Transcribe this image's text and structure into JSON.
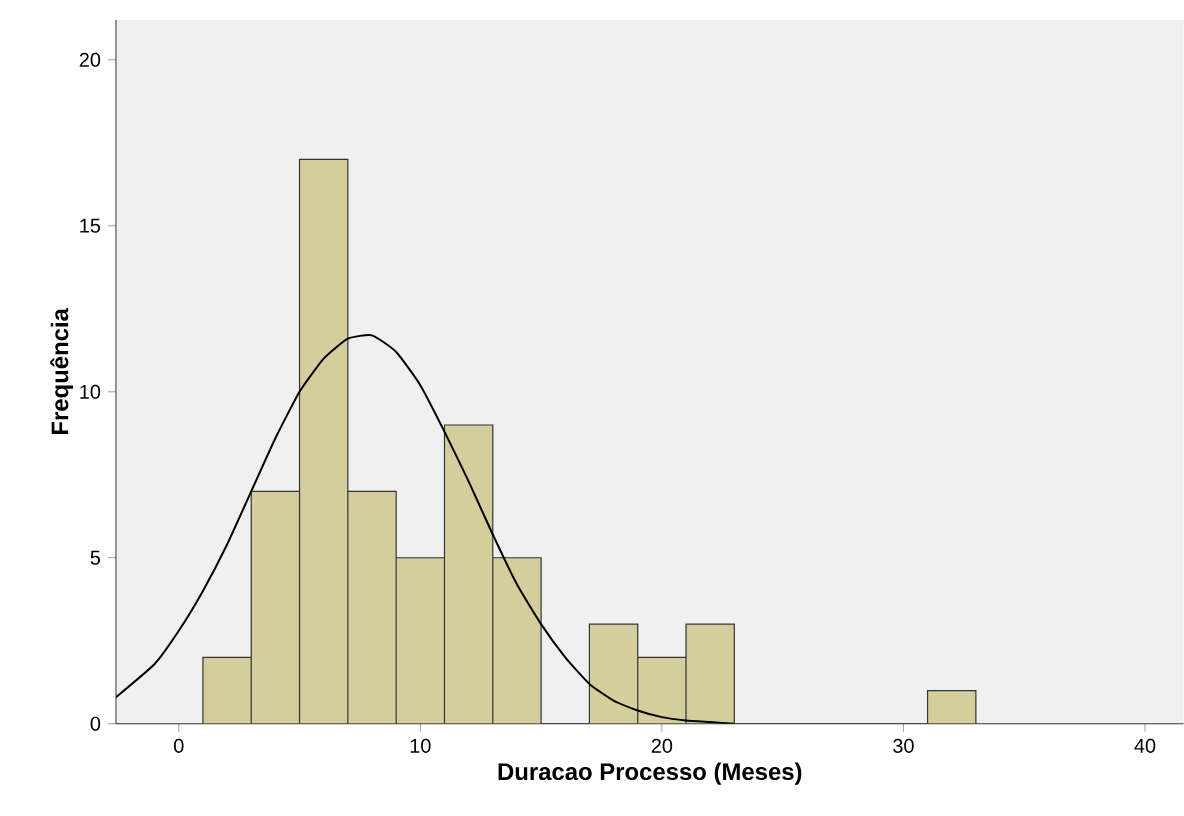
{
  "chart_data": {
    "type": "histogram",
    "xlabel": "Duracao Processo (Meses)",
    "ylabel": "Frequência",
    "bins": [
      1,
      3,
      5,
      7,
      9,
      11,
      13,
      15,
      17,
      19,
      21,
      23,
      25,
      27,
      29,
      31,
      33
    ],
    "values": [
      2,
      7,
      17,
      7,
      5,
      9,
      5,
      0,
      3,
      2,
      3,
      0,
      0,
      0,
      0,
      1
    ],
    "color": "#d3ce9b",
    "series": [
      {
        "type": "line",
        "color": "#000000",
        "x": [
          -2.6,
          -1,
          0,
          1,
          2,
          3,
          4,
          5,
          6,
          7,
          8,
          9,
          10,
          11,
          12,
          13,
          14,
          15,
          16,
          17,
          18,
          19,
          20,
          21,
          22,
          23
        ],
        "values": [
          0.8,
          1.8,
          2.8,
          4.0,
          5.4,
          7.0,
          8.6,
          10.0,
          11.0,
          11.6,
          11.7,
          11.2,
          10.2,
          8.8,
          7.3,
          5.7,
          4.2,
          3.0,
          2.0,
          1.2,
          0.7,
          0.4,
          0.2,
          0.1,
          0.05,
          0
        ]
      }
    ],
    "xlim": [
      -2.6,
      41.6
    ],
    "ylim": [
      0,
      21.2
    ],
    "xticks": [
      0,
      10,
      20,
      30,
      40
    ],
    "yticks": [
      0,
      5,
      10,
      15,
      20
    ],
    "grid": false
  }
}
